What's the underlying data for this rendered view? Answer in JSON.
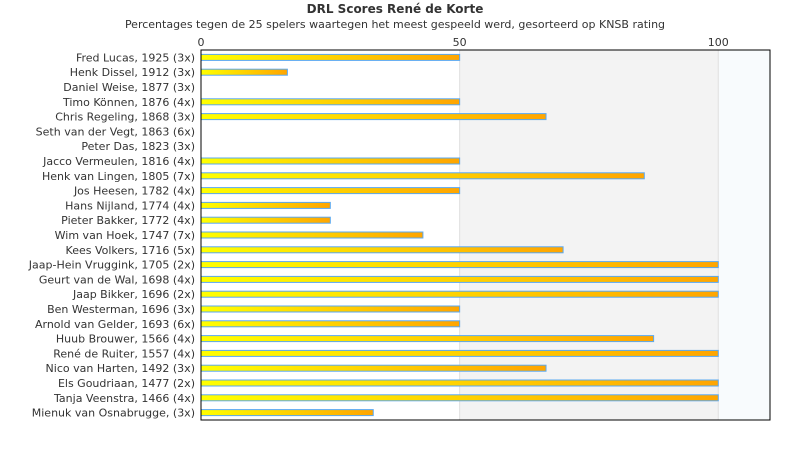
{
  "chart_data": {
    "type": "bar",
    "orientation": "horizontal",
    "title": "DRL Scores René de Korte",
    "subtitle": "Percentages tegen de 25 spelers waartegen het meest gespeeld werd, gesorteerd op KNSB rating",
    "xlabel": "",
    "ylabel": "",
    "xlim": [
      0,
      110
    ],
    "xticks": [
      0,
      50,
      100
    ],
    "bands": [
      {
        "from": 0,
        "to": 50,
        "color": "#ffffff"
      },
      {
        "from": 50,
        "to": 100,
        "color": "#f3f3f3"
      },
      {
        "from": 100,
        "to": 110,
        "color": "#f8fbfd"
      }
    ],
    "bar_gradient": [
      "#ffff00",
      "#ffa500"
    ],
    "bar_border": "#5aa8f0",
    "categories": [
      "Fred Lucas, 1925 (3x)",
      "Henk Dissel, 1912 (3x)",
      "Daniel Weise, 1877 (3x)",
      "Timo Können, 1876 (4x)",
      "Chris Regeling, 1868 (3x)",
      "Seth van der Vegt, 1863 (6x)",
      "Peter Das, 1823 (3x)",
      "Jacco Vermeulen, 1816 (4x)",
      "Henk van Lingen, 1805 (7x)",
      "Jos Heesen, 1782 (4x)",
      "Hans Nijland, 1774 (4x)",
      "Pieter Bakker, 1772 (4x)",
      "Wim van Hoek, 1747 (7x)",
      "Kees Volkers, 1716 (5x)",
      "Jaap-Hein Vruggink, 1705 (2x)",
      "Geurt van de Wal, 1698 (4x)",
      "Jaap Bikker, 1696 (2x)",
      "Ben Westerman, 1696 (3x)",
      "Arnold van Gelder, 1693 (6x)",
      "Huub Brouwer, 1566 (4x)",
      "René de Ruiter, 1557 (4x)",
      "Nico van Harten, 1492 (3x)",
      "Els Goudriaan, 1477 (2x)",
      "Tanja Veenstra, 1466 (4x)",
      "Mienuk van Osnabrugge,  (3x)"
    ],
    "values": [
      50,
      16.7,
      0,
      50,
      66.7,
      0,
      0,
      50,
      85.7,
      50,
      25,
      25,
      42.9,
      70,
      100,
      100,
      100,
      50,
      50,
      87.5,
      100,
      66.7,
      100,
      100,
      33.3
    ]
  }
}
